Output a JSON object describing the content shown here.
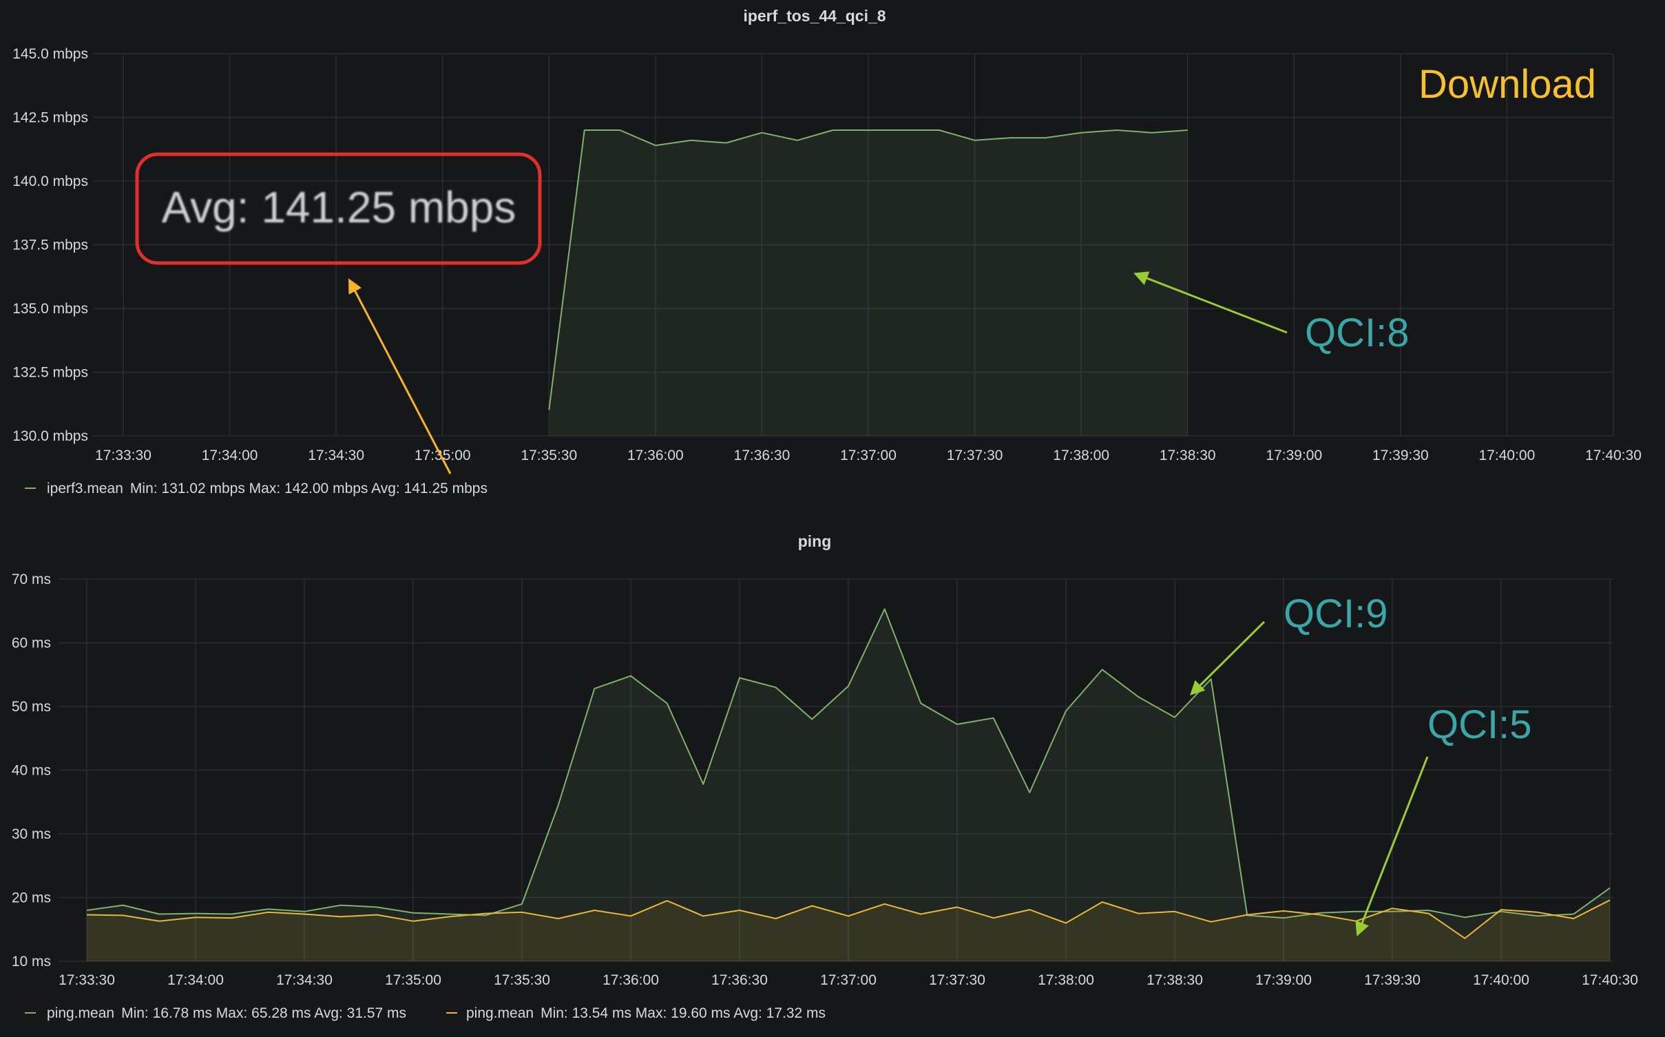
{
  "colors": {
    "background": "#161719",
    "grid": "#2b2d31",
    "series_green": "#7eb26d",
    "series_orange": "#eab839",
    "annotation_teal": "#3aa6a8",
    "annotation_yellow": "#f7c02e",
    "box_red": "#e02f2f",
    "arrow_green": "#9acd32",
    "arrow_yellow": "#f7b32b"
  },
  "annotations": {
    "download": "Download",
    "qci8": "QCI:8",
    "qci9": "QCI:9",
    "qci5": "QCI:5",
    "avg_box": "Avg: 141.25 mbps"
  },
  "chart_data": [
    {
      "type": "area",
      "title": "iperf_tos_44_qci_8",
      "x_ticks": [
        "17:33:30",
        "17:34:00",
        "17:34:30",
        "17:35:00",
        "17:35:30",
        "17:36:00",
        "17:36:30",
        "17:37:00",
        "17:37:30",
        "17:38:00",
        "17:38:30",
        "17:39:00",
        "17:39:30",
        "17:40:00",
        "17:40:30"
      ],
      "y_ticks": [
        "130.0 mbps",
        "132.5 mbps",
        "135.0 mbps",
        "137.5 mbps",
        "140.0 mbps",
        "142.5 mbps",
        "145.0 mbps"
      ],
      "ylim": [
        130,
        145
      ],
      "xlim_seconds": [
        0,
        420
      ],
      "x_unit": "seconds after 17:33:30",
      "series": [
        {
          "name": "iperf3.mean",
          "color": "#7eb26d",
          "legend_name": "iperf3.mean",
          "legend_stats": "Min: 131.02 mbps  Max: 142.00 mbps  Avg: 141.25 mbps",
          "x": [
            120,
            130,
            140,
            150,
            160,
            170,
            180,
            190,
            200,
            210,
            220,
            230,
            240,
            250,
            260,
            270,
            280,
            290,
            300
          ],
          "y": [
            131.02,
            142.0,
            142.0,
            141.4,
            141.6,
            141.5,
            141.9,
            141.6,
            142.0,
            142.0,
            142.0,
            142.0,
            141.6,
            141.7,
            141.7,
            141.9,
            142.0,
            141.9,
            142.0
          ]
        }
      ]
    },
    {
      "type": "area",
      "title": "ping",
      "x_ticks": [
        "17:33:30",
        "17:34:00",
        "17:34:30",
        "17:35:00",
        "17:35:30",
        "17:36:00",
        "17:36:30",
        "17:37:00",
        "17:37:30",
        "17:38:00",
        "17:38:30",
        "17:39:00",
        "17:39:30",
        "17:40:00",
        "17:40:30"
      ],
      "y_ticks": [
        "10 ms",
        "20 ms",
        "30 ms",
        "40 ms",
        "50 ms",
        "60 ms",
        "70 ms"
      ],
      "ylim": [
        10,
        70
      ],
      "xlim_seconds": [
        0,
        420
      ],
      "x_unit": "seconds after 17:33:30",
      "series": [
        {
          "name": "ping.mean",
          "color": "#7eb26d",
          "legend_name": "ping.mean",
          "legend_stats": "Min: 16.78 ms  Max: 65.28 ms  Avg: 31.57 ms",
          "x": [
            0,
            10,
            20,
            30,
            40,
            50,
            60,
            70,
            80,
            90,
            100,
            110,
            120,
            130,
            140,
            150,
            160,
            170,
            180,
            190,
            200,
            210,
            220,
            230,
            240,
            250,
            260,
            270,
            280,
            290,
            300,
            310,
            320,
            330,
            340,
            350,
            360,
            370,
            380,
            390,
            400,
            410,
            420
          ],
          "y": [
            18.0,
            18.8,
            17.4,
            17.5,
            17.4,
            18.2,
            17.8,
            18.8,
            18.5,
            17.6,
            17.4,
            17.2,
            19.0,
            34.5,
            52.8,
            54.8,
            50.5,
            37.8,
            54.5,
            53.0,
            48.0,
            53.2,
            65.3,
            50.5,
            47.2,
            48.2,
            36.5,
            49.3,
            55.8,
            51.5,
            48.3,
            54.3,
            17.2,
            16.8,
            17.6,
            17.8,
            17.8,
            18.0,
            16.9,
            17.8,
            17.1,
            17.4,
            21.5
          ]
        },
        {
          "name": "ping.mean",
          "color": "#eab839",
          "legend_name": "ping.mean",
          "legend_stats": "Min: 13.54 ms  Max: 19.60 ms  Avg: 17.32 ms",
          "x": [
            0,
            10,
            20,
            30,
            40,
            50,
            60,
            70,
            80,
            90,
            100,
            110,
            120,
            130,
            140,
            150,
            160,
            170,
            180,
            190,
            200,
            210,
            220,
            230,
            240,
            250,
            260,
            270,
            280,
            290,
            300,
            310,
            320,
            330,
            340,
            350,
            360,
            370,
            380,
            390,
            400,
            410,
            420
          ],
          "y": [
            17.3,
            17.2,
            16.3,
            16.9,
            16.8,
            17.7,
            17.4,
            17.0,
            17.3,
            16.3,
            17.0,
            17.5,
            17.7,
            16.7,
            18.0,
            17.1,
            19.5,
            17.1,
            18.0,
            16.7,
            18.7,
            17.1,
            19.0,
            17.4,
            18.5,
            16.8,
            18.1,
            16.0,
            19.3,
            17.5,
            17.8,
            16.2,
            17.3,
            17.9,
            17.3,
            16.3,
            18.3,
            17.5,
            13.6,
            18.1,
            17.7,
            16.7,
            19.6
          ]
        }
      ]
    }
  ]
}
